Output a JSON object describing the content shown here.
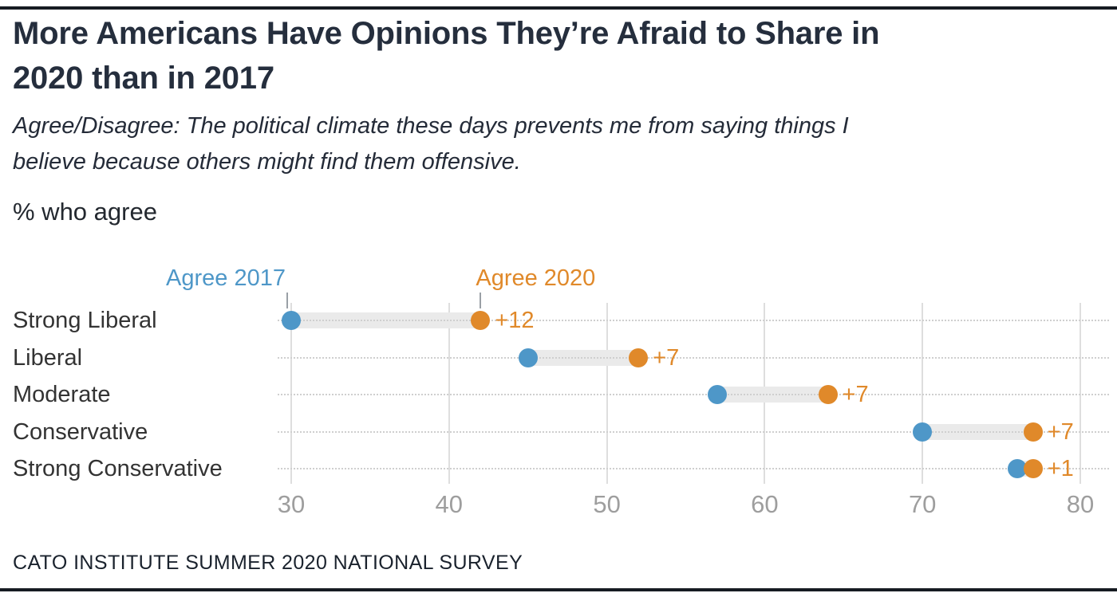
{
  "page": {
    "title_lines": [
      "More Americans Have Opinions They’re Afraid to Share in",
      "2020 than in 2017"
    ],
    "subtitle_lines": [
      "Agree/Disagree: The political climate these days prevents me from saying things I",
      "believe because others might find them offensive."
    ],
    "unit_label": "% who agree",
    "source": "CATO INSTITUTE SUMMER 2020 NATIONAL SURVEY"
  },
  "legend": {
    "label_2017": "Agree 2017",
    "label_2020": "Agree 2020"
  },
  "colors": {
    "series_2017": "#4e97c8",
    "series_2020": "#e0892a",
    "title_text": "#252e3d",
    "category_text": "#333333",
    "axis_tick_text": "#9e9e9e",
    "gridline": "#dedede",
    "connector_band": "#eaeaea",
    "dotted_guide": "#cfcfcf",
    "rule": "#161b22"
  },
  "chart_data": {
    "type": "scatter",
    "subtype": "dumbbell-dot-plot",
    "title": "More Americans Have Opinions They’re Afraid to Share in 2020 than in 2017",
    "subtitle": "Agree/Disagree: The political climate these days prevents me from saying things I believe because others might find them offensive.",
    "ylabel": "",
    "xlabel": "% who agree",
    "categories": [
      "Strong Liberal",
      "Liberal",
      "Moderate",
      "Conservative",
      "Strong Conservative"
    ],
    "series": [
      {
        "name": "Agree 2017",
        "color": "#4e97c8",
        "values": [
          30,
          45,
          57,
          70,
          76
        ]
      },
      {
        "name": "Agree 2020",
        "color": "#e0892a",
        "values": [
          42,
          52,
          64,
          77,
          77
        ]
      }
    ],
    "delta_labels": [
      "+12",
      "+7",
      "+7",
      "+7",
      "+1"
    ],
    "x_ticks": [
      30,
      40,
      50,
      60,
      70,
      80
    ],
    "xlim": [
      30,
      80
    ],
    "grid": "vertical-only",
    "legend_position": "pointers-above-first-row",
    "source": "CATO INSTITUTE SUMMER 2020 NATIONAL SURVEY"
  }
}
